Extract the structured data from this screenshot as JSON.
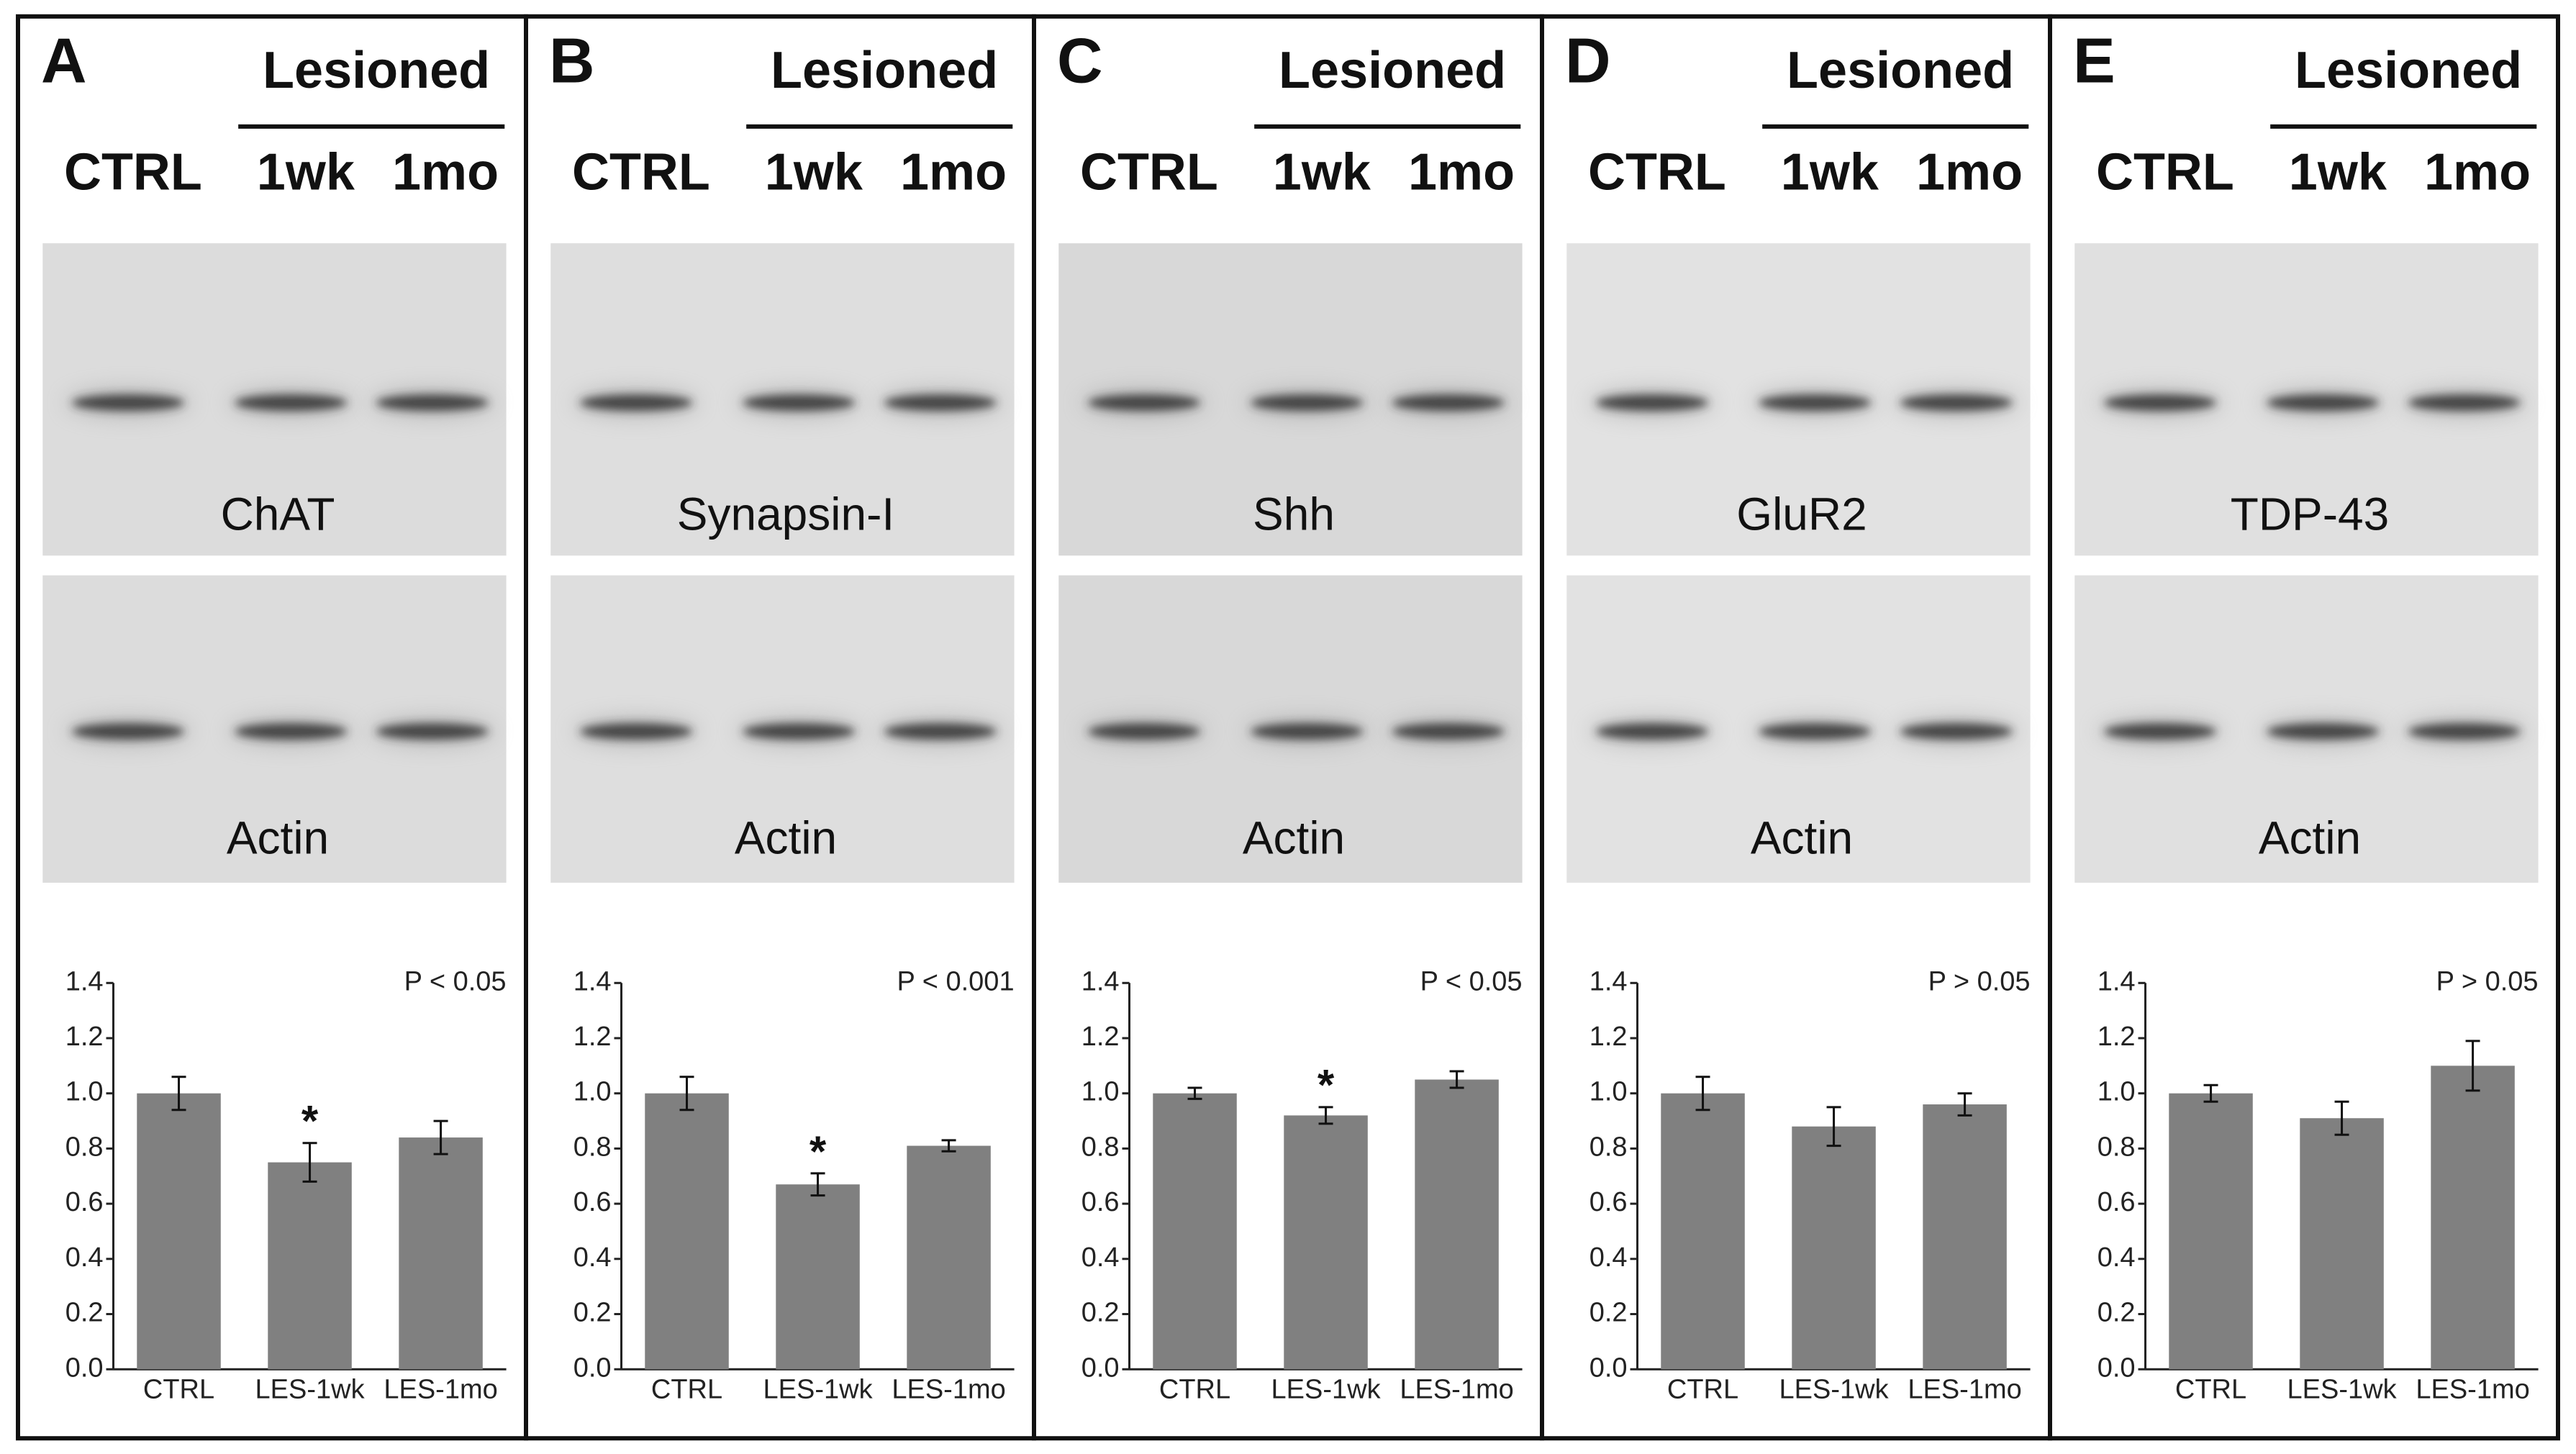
{
  "blots": [
    {
      "letter": "A",
      "group": "Lesioned",
      "lanes": [
        "CTRL",
        "1wk",
        "1mo"
      ],
      "target": "ChAT",
      "control": "Actin"
    },
    {
      "letter": "B",
      "group": "Lesioned",
      "lanes": [
        "CTRL",
        "1wk",
        "1mo"
      ],
      "target": "Synapsin-I",
      "control": "Actin"
    },
    {
      "letter": "C",
      "group": "Lesioned",
      "lanes": [
        "CTRL",
        "1wk",
        "1mo"
      ],
      "target": "Shh",
      "control": "Actin"
    },
    {
      "letter": "D",
      "group": "Lesioned",
      "lanes": [
        "CTRL",
        "1wk",
        "1mo"
      ],
      "target": "GluR2",
      "control": "Actin"
    },
    {
      "letter": "E",
      "group": "Lesioned",
      "lanes": [
        "CTRL",
        "1wk",
        "1mo"
      ],
      "target": "TDP-43",
      "control": "Actin"
    }
  ],
  "chart_data": [
    {
      "type": "bar",
      "annotation": "P < 0.05",
      "categories": [
        "CTRL",
        "LES-1wk",
        "LES-1mo"
      ],
      "values": [
        1.0,
        0.75,
        0.84
      ],
      "errors": [
        0.06,
        0.07,
        0.06
      ],
      "significance": [
        null,
        "*",
        null
      ],
      "color": "#808080",
      "ylim": [
        0,
        1.4
      ],
      "yticks": [
        {
          "value": 0,
          "label": "0.0"
        },
        0.2,
        0.4,
        0.6,
        0.8,
        {
          "value": 1,
          "label": "1.0"
        },
        1.2,
        1.4
      ]
    },
    {
      "type": "bar",
      "annotation": "P < 0.001",
      "categories": [
        "CTRL",
        "LES-1wk",
        "LES-1mo"
      ],
      "values": [
        1.0,
        0.67,
        0.81
      ],
      "errors": [
        0.06,
        0.04,
        0.02
      ],
      "significance": [
        null,
        "*",
        null
      ],
      "color": "#808080",
      "ylim": [
        0,
        1.4
      ],
      "yticks": [
        {
          "value": 0,
          "label": "0.0"
        },
        0.2,
        0.4,
        0.6,
        0.8,
        {
          "value": 1,
          "label": "1.0"
        },
        1.2,
        1.4
      ]
    },
    {
      "type": "bar",
      "annotation": "P < 0.05",
      "categories": [
        "CTRL",
        "LES-1wk",
        "LES-1mo"
      ],
      "values": [
        1.0,
        0.92,
        1.05
      ],
      "errors": [
        0.02,
        0.03,
        0.03
      ],
      "significance": [
        null,
        "*",
        null
      ],
      "color": "#808080",
      "ylim": [
        0,
        1.4
      ],
      "yticks": [
        {
          "value": 0,
          "label": "0.0"
        },
        0.2,
        0.4,
        0.6,
        0.8,
        {
          "value": 1,
          "label": "1.0"
        },
        1.2,
        1.4
      ]
    },
    {
      "type": "bar",
      "annotation": "P > 0.05",
      "categories": [
        "CTRL",
        "LES-1wk",
        "LES-1mo"
      ],
      "values": [
        1.0,
        0.88,
        0.96
      ],
      "errors": [
        0.06,
        0.07,
        0.04
      ],
      "significance": [
        null,
        null,
        null
      ],
      "color": "#808080",
      "ylim": [
        0,
        1.4
      ],
      "yticks": [
        {
          "value": 0,
          "label": "0.0"
        },
        0.2,
        0.4,
        0.6,
        0.8,
        {
          "value": 1,
          "label": "1.0"
        },
        1.2,
        1.4
      ]
    },
    {
      "type": "bar",
      "annotation": "P > 0.05",
      "categories": [
        "CTRL",
        "LES-1wk",
        "LES-1mo"
      ],
      "values": [
        1.0,
        0.91,
        1.1
      ],
      "errors": [
        0.03,
        0.06,
        0.09
      ],
      "significance": [
        null,
        null,
        null
      ],
      "color": "#808080",
      "ylim": [
        0,
        1.4
      ],
      "yticks": [
        {
          "value": 0,
          "label": "0.0"
        },
        0.2,
        0.4,
        0.6,
        0.8,
        {
          "value": 1,
          "label": "1.0"
        },
        1.2,
        1.4
      ]
    }
  ]
}
